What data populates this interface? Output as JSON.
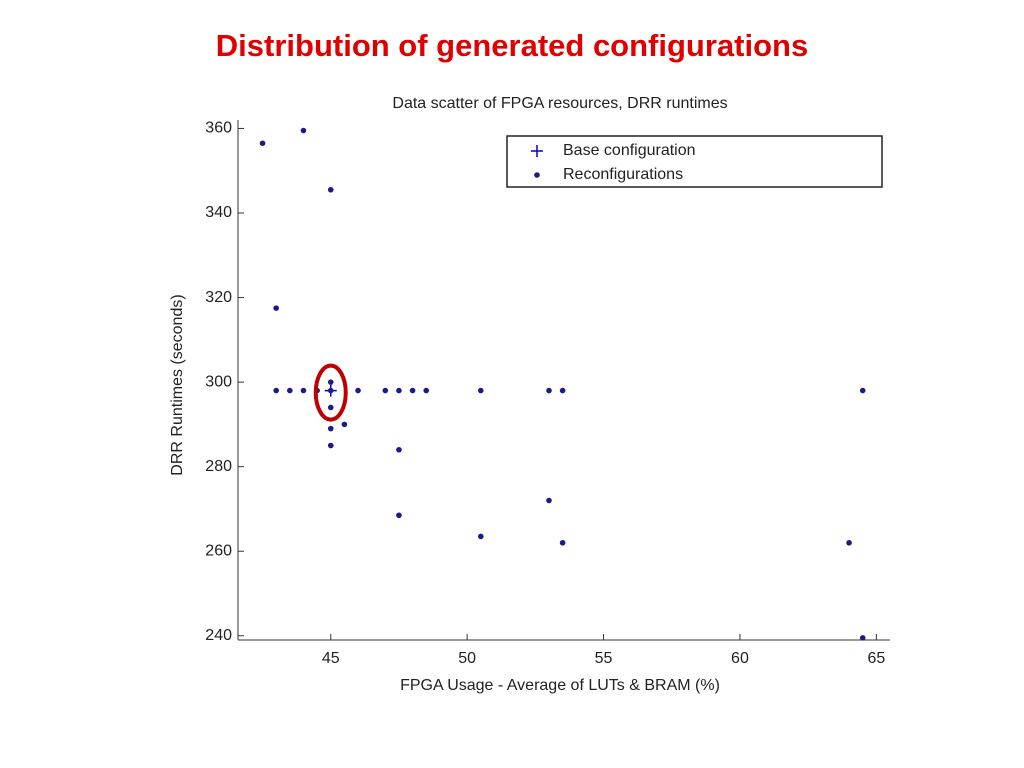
{
  "slide_title": "Distribution of generated configurations",
  "chart_data": {
    "type": "scatter",
    "title": "Data scatter of FPGA resources, DRR runtimes",
    "x_label": "FPGA Usage - Average of LUTs & BRAM (%)",
    "y_label": "DRR Runtimes (seconds)",
    "xlim": [
      41.6,
      65.5
    ],
    "ylim": [
      239,
      362
    ],
    "xticks": [
      45,
      50,
      55,
      60,
      65
    ],
    "yticks": [
      240,
      260,
      280,
      300,
      320,
      340,
      360
    ],
    "legend": "upper right",
    "series": [
      {
        "name": "Base configuration",
        "color": "#0000cc",
        "marker": "plus",
        "x": [
          45
        ],
        "y": [
          298
        ]
      },
      {
        "name": "Reconfigurations",
        "color": "#1a1a8c",
        "marker": "dot",
        "x": [
          42.5,
          44,
          45,
          43,
          43,
          43.5,
          44,
          44.5,
          45,
          46,
          47,
          47.5,
          48,
          48.5,
          50.5,
          53,
          53.5,
          64.5,
          45,
          45,
          45.5,
          45,
          45,
          47.5,
          47.5,
          50.5,
          53,
          53.5,
          64,
          64.5
        ],
        "y": [
          356.5,
          359.5,
          345.5,
          317.5,
          298,
          298,
          298,
          298,
          298,
          298,
          298,
          298,
          298,
          298,
          298,
          298,
          298,
          298,
          300,
          294,
          290,
          289,
          285,
          284,
          268.5,
          263.5,
          272,
          262,
          262,
          239.5
        ]
      }
    ]
  }
}
